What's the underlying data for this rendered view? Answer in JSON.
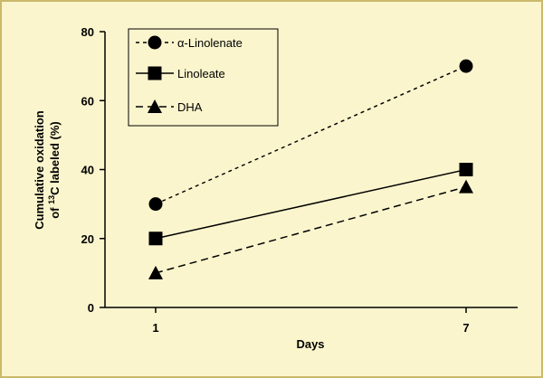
{
  "chart_data": {
    "type": "line",
    "x": [
      1,
      7
    ],
    "xticks": [
      "1",
      "7"
    ],
    "xlabel": "Days",
    "ylabel_line1": "Cumulative oxidation",
    "ylabel_line2_pre": "of ",
    "ylabel_line2_sup": "13",
    "ylabel_line2_post": "C labeled (%)",
    "ylim": [
      0,
      80
    ],
    "yticks": [
      "0",
      "20",
      "40",
      "60",
      "80"
    ],
    "grid": false,
    "legend_position": "top-left",
    "series": [
      {
        "name": "α-Linolenate",
        "values": [
          30,
          70
        ],
        "marker": "circle",
        "line_style": "dotted",
        "color": "#000000"
      },
      {
        "name": "Linoleate",
        "values": [
          20,
          40
        ],
        "marker": "square",
        "line_style": "solid",
        "color": "#000000"
      },
      {
        "name": "DHA",
        "values": [
          10,
          35
        ],
        "marker": "triangle",
        "line_style": "dashed",
        "color": "#000000"
      }
    ]
  }
}
